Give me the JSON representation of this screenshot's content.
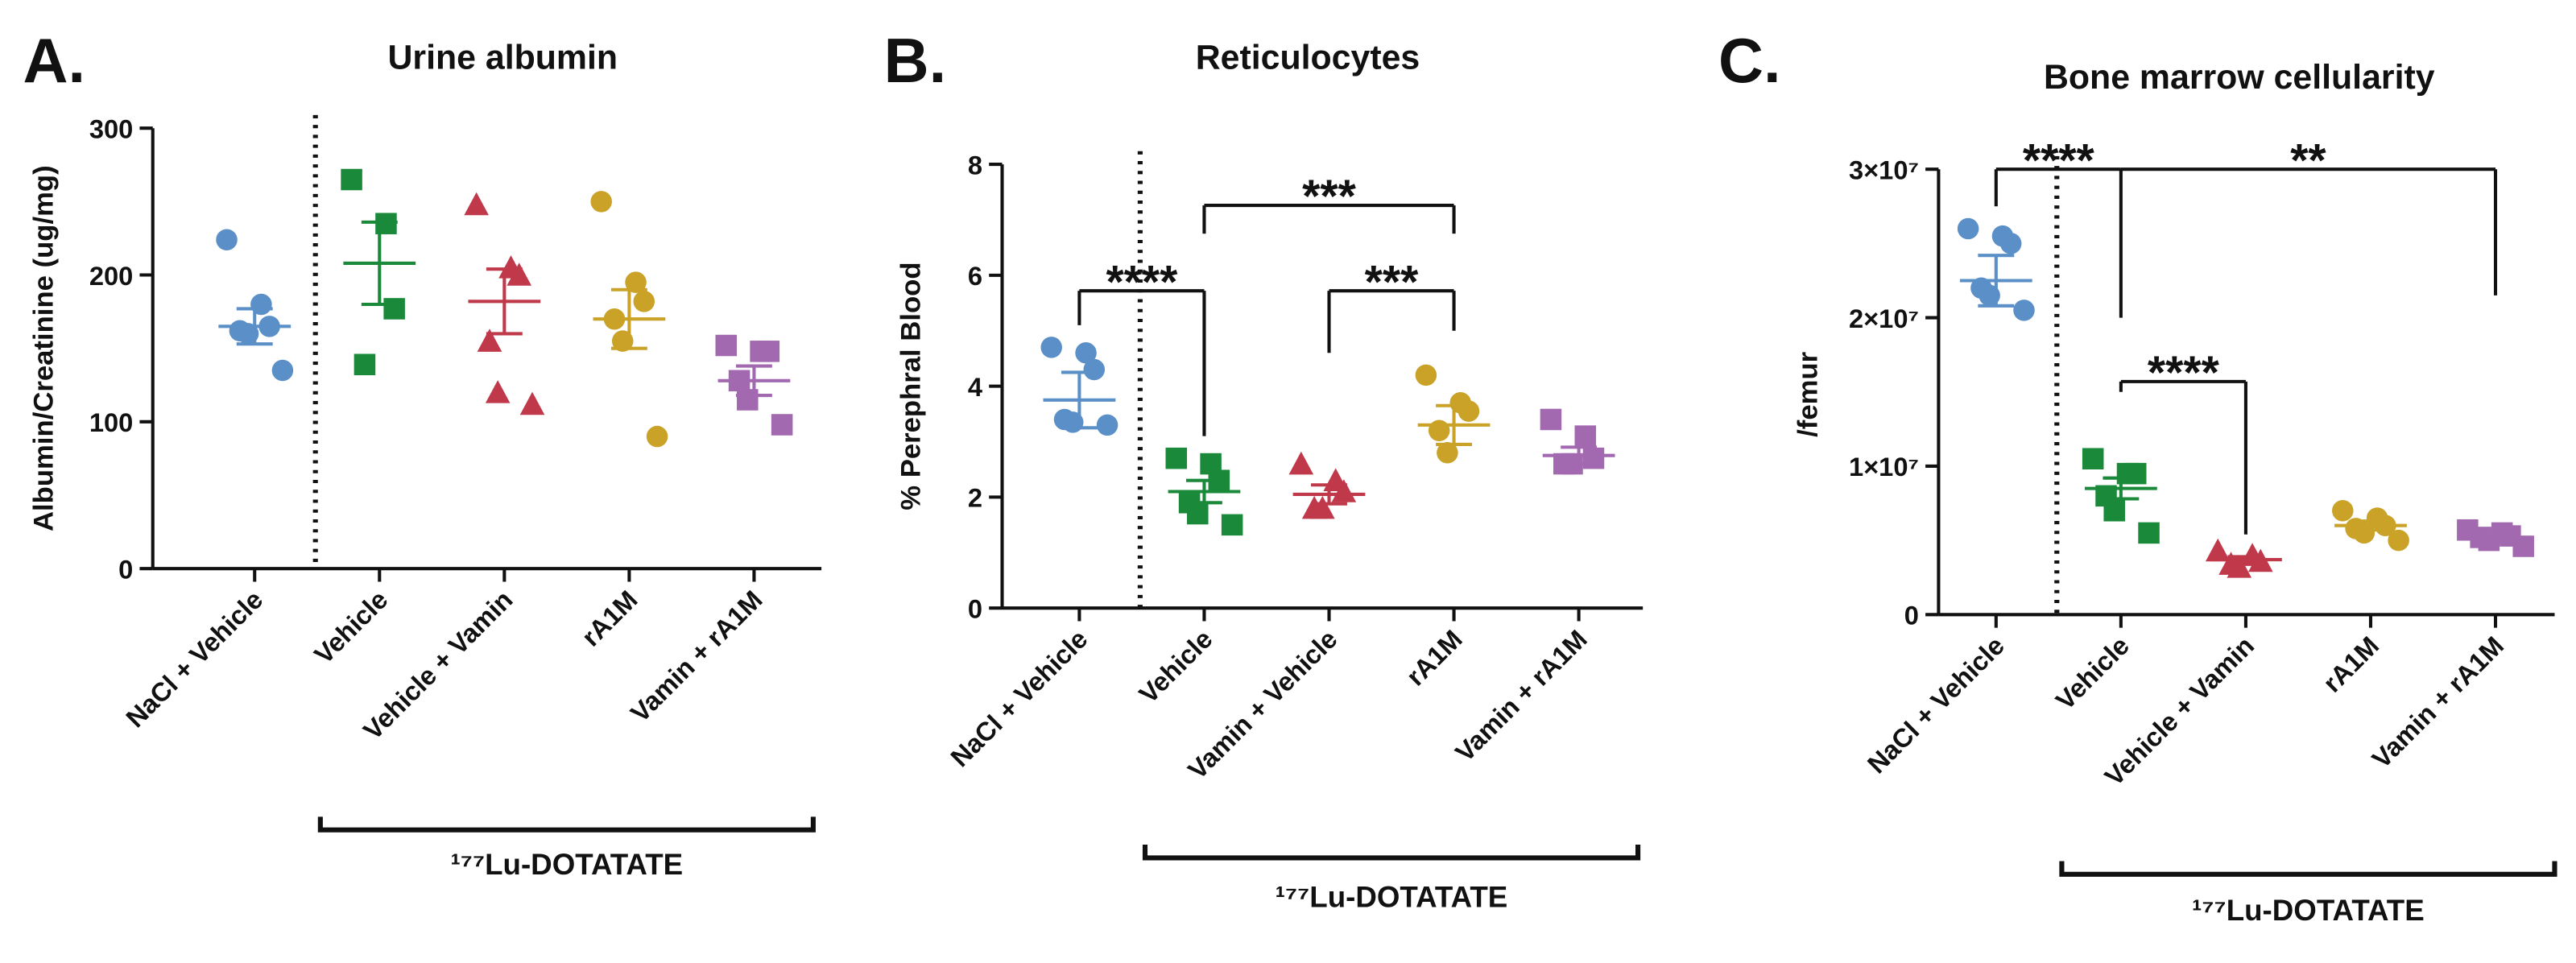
{
  "chart_data": [
    {
      "type": "strip",
      "panel": "A.",
      "title": "Urine albumin",
      "ylabel": "Albumin/Creatinine (ug/mg)",
      "categories": [
        "NaCl + Vehicle",
        "Vehicle",
        "Vehicle + Vamin",
        "rA1M",
        "Vamin + rA1M"
      ],
      "colors": [
        "#5b8fc7",
        "#1a8a3a",
        "#c0394b",
        "#c9a227",
        "#a269b0"
      ],
      "markers": [
        "circle",
        "square",
        "triangle",
        "circle",
        "square"
      ],
      "points": [
        [
          224,
          180,
          165,
          162,
          160,
          135
        ],
        [
          265,
          235,
          177,
          139
        ],
        [
          248,
          205,
          200,
          155,
          120,
          112
        ],
        [
          250,
          195,
          182,
          170,
          155,
          90
        ],
        [
          152,
          148,
          148,
          128,
          115,
          98
        ]
      ],
      "means": [
        165,
        208,
        182,
        170,
        128
      ],
      "sem": [
        12,
        28,
        22,
        20,
        10
      ],
      "ylim": [
        0,
        300
      ],
      "yticks": [
        0,
        100,
        200,
        300
      ],
      "group": {
        "label": "¹⁷⁷Lu-DOTATATE",
        "from": 1,
        "to": 4
      },
      "significance": []
    },
    {
      "type": "strip",
      "panel": "B.",
      "title": "Reticulocytes",
      "ylabel": "% Perephral Blood",
      "categories": [
        "NaCl + Vehicle",
        "Vehicle",
        "Vamin + Vehicle",
        "rA1M",
        "Vamin + rA1M"
      ],
      "colors": [
        "#5b8fc7",
        "#1a8a3a",
        "#c0394b",
        "#c9a227",
        "#a269b0"
      ],
      "markers": [
        "circle",
        "square",
        "triangle",
        "circle",
        "square"
      ],
      "points": [
        [
          4.7,
          4.6,
          4.3,
          3.4,
          3.35,
          3.3
        ],
        [
          2.7,
          2.6,
          2.3,
          1.9,
          1.7,
          1.5
        ],
        [
          2.6,
          2.3,
          2.1,
          1.8,
          1.8
        ],
        [
          4.2,
          3.7,
          3.55,
          3.2,
          2.8
        ],
        [
          3.4,
          3.1,
          2.7,
          2.6,
          2.6
        ]
      ],
      "means": [
        3.75,
        2.1,
        2.05,
        3.3,
        2.75
      ],
      "sem": [
        0.5,
        0.2,
        0.17,
        0.35,
        0.15
      ],
      "ylim": [
        0,
        8
      ],
      "yticks": [
        0,
        2,
        4,
        6,
        8
      ],
      "group": {
        "label": "¹⁷⁷Lu-DOTATATE",
        "from": 1,
        "to": 4
      },
      "significance": [
        {
          "from": 0,
          "to": 1,
          "label": "****",
          "y": 5.72,
          "y_from": 5.1,
          "y_to": 3.1
        },
        {
          "from": 1,
          "to": 3,
          "label": "***",
          "y": 7.26,
          "y_from": 6.75,
          "y_to": 6.75
        },
        {
          "from": 2,
          "to": 3,
          "label": "***",
          "y": 5.72,
          "y_from": 4.6,
          "y_to": 5.0
        }
      ]
    },
    {
      "type": "strip",
      "panel": "C.",
      "title": "Bone marrow cellularity",
      "ylabel": "/femur",
      "categories": [
        "NaCl + Vehicle",
        "Vehicle",
        "Vehicle + Vamin",
        "rA1M",
        "Vamin + rA1M"
      ],
      "colors": [
        "#5b8fc7",
        "#1a8a3a",
        "#c0394b",
        "#c9a227",
        "#a269b0"
      ],
      "markers": [
        "circle",
        "square",
        "triangle",
        "circle",
        "square"
      ],
      "points": [
        [
          26000000,
          25500000,
          25000000,
          22000000,
          21500000,
          20500000
        ],
        [
          10500000,
          9500000,
          9500000,
          8000000,
          7000000,
          5500000
        ],
        [
          4300000,
          4000000,
          3600000,
          3400000,
          3200000
        ],
        [
          7000000,
          6500000,
          6000000,
          5800000,
          5500000,
          5000000
        ],
        [
          5700000,
          5500000,
          5300000,
          5200000,
          5000000,
          4600000
        ]
      ],
      "means": [
        22500000,
        8500000,
        3700000,
        6000000,
        5200000
      ],
      "sem": [
        1700000,
        700000,
        200000,
        300000,
        200000
      ],
      "ylim": [
        0,
        30000000
      ],
      "yticks": [
        0,
        {
          "value": 10000000,
          "label": "1×10⁷"
        },
        {
          "value": 20000000,
          "label": "2×10⁷"
        },
        {
          "value": 30000000,
          "label": "3×10⁷"
        }
      ],
      "group": {
        "label": "¹⁷⁷Lu-DOTATATE",
        "from": 1,
        "to": 4
      },
      "significance": [
        {
          "from": 0,
          "to": 1,
          "label": "****",
          "y": 30000000,
          "y_from": 27500000,
          "y_to": 20000000
        },
        {
          "from": 1,
          "to": 4,
          "label": "**",
          "y": 30000000,
          "y_from": 30000000,
          "y_to": 21500000
        },
        {
          "from": 1,
          "to": 2,
          "label": "****",
          "y": 15700000,
          "y_from": 15000000,
          "y_to": 5400000
        }
      ]
    }
  ]
}
